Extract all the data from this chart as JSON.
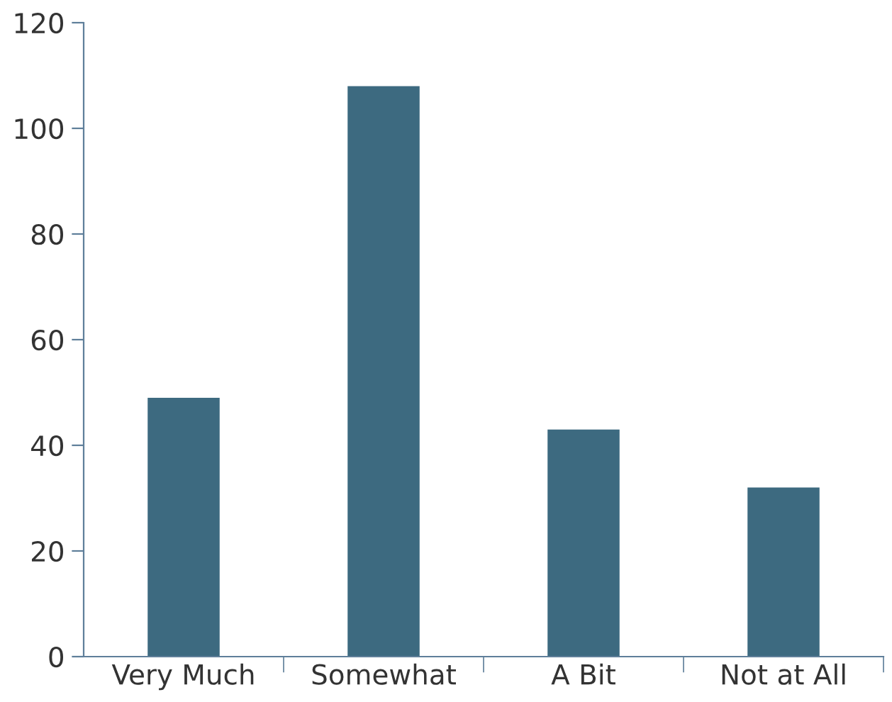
{
  "chart_data": {
    "type": "bar",
    "categories": [
      "Very Much",
      "Somewhat",
      "A Bit",
      "Not at All"
    ],
    "values": [
      49,
      108,
      43,
      32
    ],
    "color": "#3d6a80",
    "ylim": [
      0,
      120
    ],
    "yticks": [
      0,
      20,
      40,
      60,
      80,
      100,
      120
    ],
    "grid": false,
    "legend": false
  }
}
